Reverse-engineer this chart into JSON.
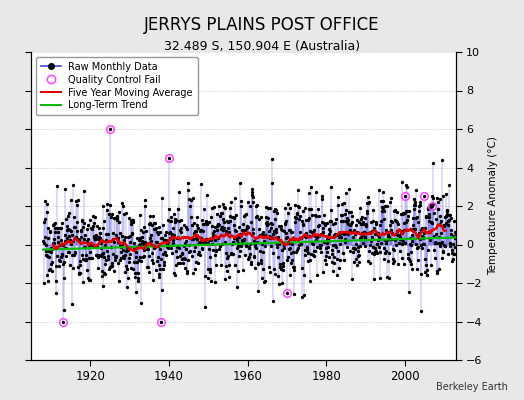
{
  "title": "JERRYS PLAINS POST OFFICE",
  "subtitle": "32.489 S, 150.904 E (Australia)",
  "ylabel": "Temperature Anomaly (°C)",
  "credit": "Berkeley Earth",
  "ylim": [
    -6,
    10
  ],
  "yticks": [
    -6,
    -4,
    -2,
    0,
    2,
    4,
    6,
    8,
    10
  ],
  "xlim": [
    1905,
    2013
  ],
  "xticks": [
    1920,
    1940,
    1960,
    1980,
    2000
  ],
  "year_start": 1908,
  "year_end": 2013,
  "bg_color": "#e8e8e8",
  "plot_bg_color": "#ffffff",
  "raw_line_color": "#4444dd",
  "raw_dot_color": "#000000",
  "qc_fail_color": "#ff44ff",
  "moving_avg_color": "#dd0000",
  "trend_color": "#00bb00",
  "title_fontsize": 12,
  "subtitle_fontsize": 9,
  "seed": 17,
  "qc_fail_years": [
    1913,
    1925,
    1938,
    1940,
    1970,
    2000,
    2005,
    2007
  ],
  "qc_fail_values": [
    -4.0,
    6.0,
    -4.0,
    4.5,
    -2.5,
    2.5,
    2.5,
    2.0
  ]
}
